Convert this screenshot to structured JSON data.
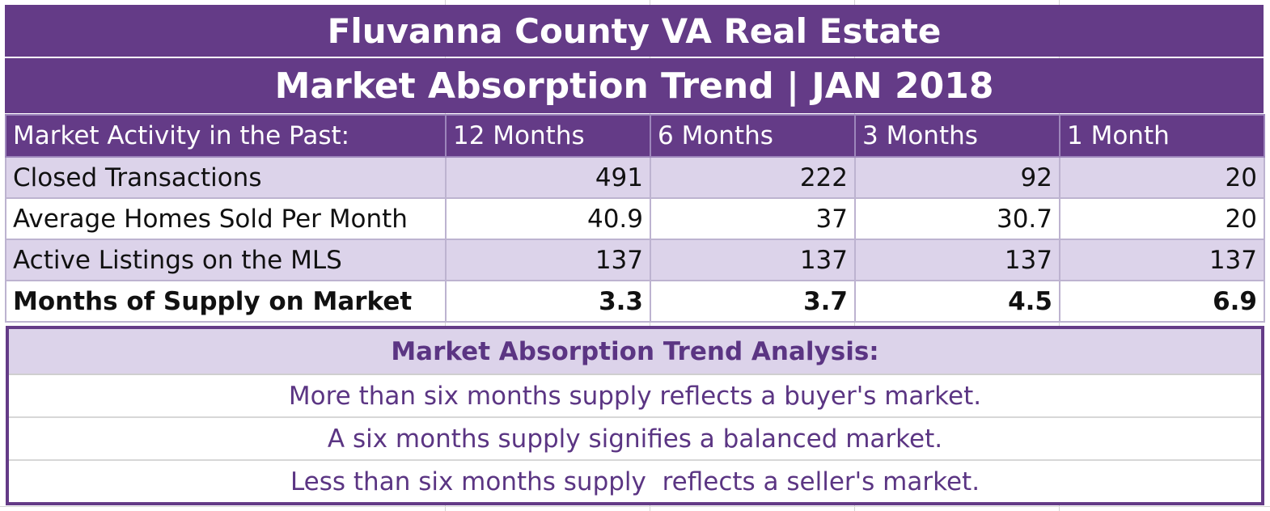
{
  "title": {
    "line1": "Fluvanna County VA Real Estate",
    "line2": "Market Absorption Trend | JAN 2018"
  },
  "table": {
    "headers": [
      "Market Activity in the Past:",
      "12 Months",
      "6 Months",
      "3 Months",
      "1 Month"
    ],
    "rows": [
      {
        "label": "Closed Transactions",
        "values": [
          "491",
          "222",
          "92",
          "20"
        ]
      },
      {
        "label": "Average Homes Sold Per Month",
        "values": [
          "40.9",
          "37",
          "30.7",
          "20"
        ]
      },
      {
        "label": "Active Listings on the MLS",
        "values": [
          "137",
          "137",
          "137",
          "137"
        ]
      },
      {
        "label": "Months of Supply on Market",
        "values": [
          "3.3",
          "3.7",
          "4.5",
          "6.9"
        ]
      }
    ]
  },
  "analysis": {
    "heading": "Market Absorption Trend Analysis:",
    "lines": [
      "More than six months supply reflects a buyer's market.",
      "A six months supply signifies a balanced market.",
      "Less than six months supply  reflects a seller's market."
    ]
  },
  "colors": {
    "header_purple": "#643b87",
    "row_shade": "#dcd3ea",
    "analysis_text": "#5b3583"
  }
}
